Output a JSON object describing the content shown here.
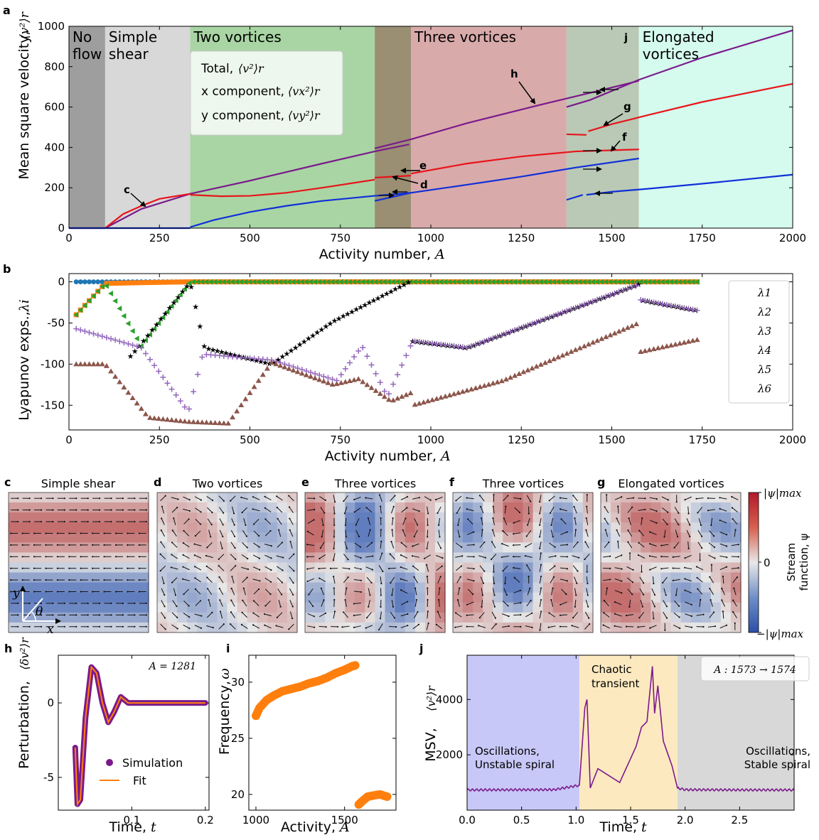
{
  "panels": {
    "a": {
      "letter": "a",
      "xlabel": "Activity number,",
      "xlabel_sym": "A",
      "ylabel": "Mean square velocity,",
      "ylabel_sym": "⟨v²⟩r",
      "regions": [
        {
          "label": "No\nflow",
          "from": 0,
          "to": 100,
          "color": "#9e9e9e",
          "text_color": "#000000"
        },
        {
          "label": "Simple\nshear",
          "from": 100,
          "to": 335,
          "color": "#d8d8d8",
          "text_color": "#8a8a8a"
        },
        {
          "label": "Two vortices",
          "from": 335,
          "to": 845,
          "color": "#a9d5a4",
          "text_color": "#1a8a1a"
        },
        {
          "label": "",
          "from": 845,
          "to": 945,
          "color": "#9b8f73",
          "text_color": "#000000"
        },
        {
          "label": "Three vortices",
          "from": 945,
          "to": 1375,
          "color": "#d9aaaa",
          "text_color": "#8b0000"
        },
        {
          "label": "",
          "from": 1375,
          "to": 1575,
          "color": "#b9c9b5",
          "text_color": "#000000"
        },
        {
          "label": "Elongated\nvortices",
          "from": 1575,
          "to": 2000,
          "color": "#d5fbee",
          "text_color": "#138a8a"
        }
      ],
      "legend": {
        "total": "Total,",
        "total_sym": "⟨v²⟩r",
        "x": "x component,",
        "x_sym": "⟨vx²⟩r",
        "y": "y component,",
        "y_sym": "⟨vy²⟩r"
      },
      "annotations": [
        "c",
        "d",
        "e",
        "f",
        "g",
        "h",
        "j"
      ],
      "colors": {
        "total": "#7b1a8c",
        "x": "#e8141b",
        "y": "#1030d8"
      }
    },
    "b": {
      "letter": "b",
      "xlabel": "Activity number,",
      "xlabel_sym": "A",
      "ylabel": "Lyapunov exps.,",
      "ylabel_sym": "λi",
      "legend": [
        "λ1",
        "λ2",
        "λ3",
        "λ4",
        "λ5",
        "λ6"
      ],
      "colors": [
        "#1f77b4",
        "#ff7f0e",
        "#2ca02c",
        "#d62728",
        "#9467bd",
        "#8c564b"
      ]
    },
    "c": {
      "letter": "c",
      "title": "Simple shear",
      "axis_y": "y",
      "axis_x": "x",
      "angle": "θ"
    },
    "d": {
      "letter": "d",
      "title": "Two vortices"
    },
    "e": {
      "letter": "e",
      "title": "Three vortices"
    },
    "f": {
      "letter": "f",
      "title": "Three vortices"
    },
    "g": {
      "letter": "g",
      "title": "Elongated vortices"
    },
    "colorbar": {
      "top": "|ψ|max",
      "mid": "0",
      "bottom": "−|ψ|max",
      "label1": "Stream",
      "label2": "function, ψ"
    },
    "h": {
      "letter": "h",
      "xlabel": "Time,",
      "xlabel_sym": "t",
      "ylabel": "Perturbation,",
      "ylabel_sym": "⟨δv²⟩r",
      "annotation": "A = 1281",
      "legend_sim": "Simulation",
      "legend_fit": "Fit"
    },
    "i": {
      "letter": "i",
      "xlabel": "Activity,",
      "xlabel_sym": "A",
      "ylabel": "Frequency,",
      "ylabel_sym": "ω"
    },
    "j": {
      "letter": "j",
      "xlabel": "Time,",
      "xlabel_sym": "t",
      "ylabel": "MSV,",
      "ylabel_sym": "⟨v²⟩r",
      "annotation": "A : 1573 → 1574",
      "regions": [
        {
          "label1": "Oscillations,",
          "label2": "Unstable spiral",
          "from": 0,
          "to": 1.03,
          "color": "#c8c8f8"
        },
        {
          "label1": "Chaotic",
          "label2": "transient",
          "from": 1.03,
          "to": 1.93,
          "color": "#fde9c0"
        },
        {
          "label1": "Oscillations,",
          "label2": "Stable spiral",
          "from": 1.93,
          "to": 3.0,
          "color": "#d8d8d8"
        }
      ]
    }
  },
  "chart_data": [
    {
      "panel": "a",
      "type": "line",
      "title": "",
      "xlabel": "Activity number, A",
      "ylabel": "Mean square velocity, <v^2>_r",
      "xlim": [
        0,
        2000
      ],
      "ylim": [
        0,
        1000
      ],
      "xticks": [
        0,
        250,
        500,
        750,
        1000,
        1250,
        1500,
        1750,
        2000
      ],
      "yticks": [
        0,
        200,
        400,
        600,
        800,
        1000
      ],
      "series": [
        {
          "name": "Total, <v^2>_r",
          "segments": [
            {
              "x": [
                0,
                100,
                200,
                335
              ],
              "y": [
                0,
                0,
                95,
                170
              ]
            },
            {
              "x": [
                335,
                500,
                700,
                845,
                940
              ],
              "y": [
                170,
                235,
                320,
                380,
                415
              ]
            },
            {
              "x": [
                845,
                945,
                1100,
                1300,
                1440,
                1575
              ],
              "y": [
                395,
                440,
                520,
                610,
                670,
                730
              ]
            },
            {
              "x": [
                1375,
                1440,
                1575
              ],
              "y": [
                600,
                635,
                735
              ]
            },
            {
              "x": [
                1575,
                1750,
                2000
              ],
              "y": [
                735,
                845,
                980
              ]
            }
          ]
        },
        {
          "name": "x component, <vx^2>_r",
          "segments": [
            {
              "x": [
                100,
                150,
                200,
                250,
                335
              ],
              "y": [
                0,
                70,
                110,
                145,
                170
              ]
            },
            {
              "x": [
                335,
                420,
                500,
                600,
                700,
                845
              ],
              "y": [
                165,
                158,
                160,
                175,
                200,
                240
              ]
            },
            {
              "x": [
                845,
                945
              ],
              "y": [
                250,
                260
              ]
            },
            {
              "x": [
                945,
                1100,
                1250,
                1400,
                1575
              ],
              "y": [
                270,
                320,
                355,
                380,
                390
              ]
            },
            {
              "x": [
                1375,
                1430
              ],
              "y": [
                465,
                462
              ]
            },
            {
              "x": [
                1435,
                1500,
                1600,
                1750,
                2000
              ],
              "y": [
                480,
                515,
                560,
                625,
                715
              ]
            }
          ]
        },
        {
          "name": "y component, <vy^2>_r",
          "segments": [
            {
              "x": [
                0,
                335
              ],
              "y": [
                0,
                0
              ]
            },
            {
              "x": [
                335,
                400,
                500,
                600,
                700,
                845,
                945
              ],
              "y": [
                5,
                40,
                80,
                110,
                135,
                160,
                175
              ]
            },
            {
              "x": [
                845,
                945,
                1100,
                1250,
                1400,
                1575
              ],
              "y": [
                135,
                175,
                215,
                255,
                300,
                345
              ]
            },
            {
              "x": [
                1375,
                1420
              ],
              "y": [
                140,
                165
              ]
            },
            {
              "x": [
                1430,
                1500,
                1600,
                1750,
                2000
              ],
              "y": [
                165,
                180,
                195,
                220,
                265
              ]
            }
          ]
        }
      ]
    },
    {
      "panel": "b",
      "type": "scatter",
      "xlabel": "Activity number, A",
      "ylabel": "Lyapunov exps., lambda_i",
      "xlim": [
        0,
        2000
      ],
      "ylim": [
        -180,
        10
      ],
      "xticks": [
        0,
        250,
        500,
        750,
        1000,
        1250,
        1500,
        1750,
        2000
      ],
      "yticks": [
        -150,
        -100,
        -50,
        0
      ],
      "series": [
        {
          "name": "λ1",
          "x": [
            20,
            1740
          ],
          "y": [
            0,
            0
          ]
        },
        {
          "name": "λ2",
          "x": [
            20,
            100,
            200,
            335,
            1740
          ],
          "y": [
            -40,
            -2,
            -1,
            0,
            0
          ]
        },
        {
          "name": "λ3",
          "x": [
            20,
            100,
            200,
            335,
            1740
          ],
          "y": [
            -40,
            -2,
            -78,
            0,
            0
          ]
        },
        {
          "name": "λ4",
          "x": [
            170,
            200,
            335,
            375,
            560,
            730,
            940,
            950,
            1100,
            1575,
            1580,
            1740
          ],
          "y": [
            -90,
            -75,
            0,
            -80,
            -100,
            -48,
            0,
            -72,
            -80,
            -3,
            -22,
            -35
          ]
        },
        {
          "name": "λ5",
          "x": [
            20,
            200,
            330,
            370,
            560,
            740,
            810,
            880,
            950,
            1100,
            1575,
            1580,
            1740
          ],
          "y": [
            -57,
            -80,
            -158,
            -88,
            -95,
            -120,
            -78,
            -140,
            -72,
            -80,
            -3,
            -22,
            -35
          ]
        },
        {
          "name": "λ6",
          "x": [
            20,
            100,
            220,
            330,
            440,
            560,
            730,
            800,
            890,
            945,
            950,
            1200,
            1575,
            1580,
            1740
          ],
          "y": [
            -100,
            -100,
            -165,
            -170,
            -172,
            -98,
            -125,
            -118,
            -145,
            -135,
            -150,
            -120,
            -50,
            -85,
            -70
          ]
        }
      ]
    },
    {
      "panel": "h",
      "type": "line",
      "annotation": "A = 1281",
      "xlabel": "Time, t",
      "ylabel": "Perturbation, <dv^2>_r",
      "xlim": [
        0.0,
        0.205
      ],
      "ylim": [
        -7.2,
        3.2
      ],
      "xticks": [
        0.1,
        0.2
      ],
      "yticks": [
        -5,
        0
      ],
      "series": [
        {
          "name": "Simulation",
          "x": [
            0.023,
            0.026,
            0.03,
            0.037,
            0.045,
            0.052,
            0.06,
            0.068,
            0.076,
            0.085,
            0.095,
            0.11,
            0.14,
            0.2
          ],
          "y": [
            -3,
            -6.8,
            -6.5,
            -1,
            2.4,
            2,
            0,
            -1.3,
            -0.6,
            0.4,
            0,
            0,
            0,
            0
          ]
        },
        {
          "name": "Fit",
          "x": [
            0.023,
            0.026,
            0.03,
            0.037,
            0.045,
            0.052,
            0.06,
            0.068,
            0.076,
            0.085,
            0.095,
            0.11,
            0.14,
            0.2
          ],
          "y": [
            -3,
            -6.8,
            -6.5,
            -1,
            2.4,
            2,
            0,
            -1.3,
            -0.6,
            0.4,
            0,
            0,
            0,
            0
          ]
        }
      ]
    },
    {
      "panel": "i",
      "type": "scatter",
      "xlabel": "Activity, A",
      "ylabel": "Frequency, ω",
      "xlim": [
        960,
        1790
      ],
      "ylim": [
        18.6,
        32.4
      ],
      "xticks": [
        1000,
        1500
      ],
      "yticks": [
        20,
        25,
        30
      ],
      "series": [
        {
          "name": "upper branch",
          "x": [
            1000,
            1020,
            1060,
            1100,
            1150,
            1200,
            1250,
            1300,
            1350,
            1400,
            1450,
            1500,
            1540,
            1560
          ],
          "y": [
            27,
            27.7,
            28.4,
            28.8,
            29.2,
            29.4,
            29.6,
            29.9,
            30.1,
            30.4,
            30.8,
            31.1,
            31.4,
            31.5
          ]
        },
        {
          "name": "lower branch",
          "x": [
            1580,
            1600,
            1630,
            1660,
            1700,
            1740
          ],
          "y": [
            19.1,
            19.4,
            19.8,
            19.9,
            20.0,
            19.8
          ]
        }
      ]
    },
    {
      "panel": "j",
      "type": "line",
      "annotation": "A : 1573 → 1574",
      "xlabel": "Time, t",
      "ylabel": "MSV, <v^2>_r",
      "xlim": [
        0.0,
        3.0
      ],
      "ylim": [
        0,
        5600
      ],
      "xticks": [
        0.0,
        0.5,
        1.0,
        1.5,
        2.0,
        2.5
      ],
      "yticks": [
        2000,
        4000
      ],
      "series": [
        {
          "name": "MSV",
          "x": [
            0.0,
            0.8,
            1.03,
            1.08,
            1.1,
            1.13,
            1.2,
            1.4,
            1.55,
            1.6,
            1.65,
            1.7,
            1.72,
            1.75,
            1.8,
            1.88,
            1.93,
            2.0,
            2.5,
            3.0
          ],
          "y": [
            730,
            740,
            900,
            3700,
            4000,
            800,
            1500,
            1000,
            2300,
            3000,
            3200,
            5200,
            3500,
            4500,
            2500,
            1600,
            800,
            740,
            730,
            730
          ]
        }
      ]
    }
  ]
}
